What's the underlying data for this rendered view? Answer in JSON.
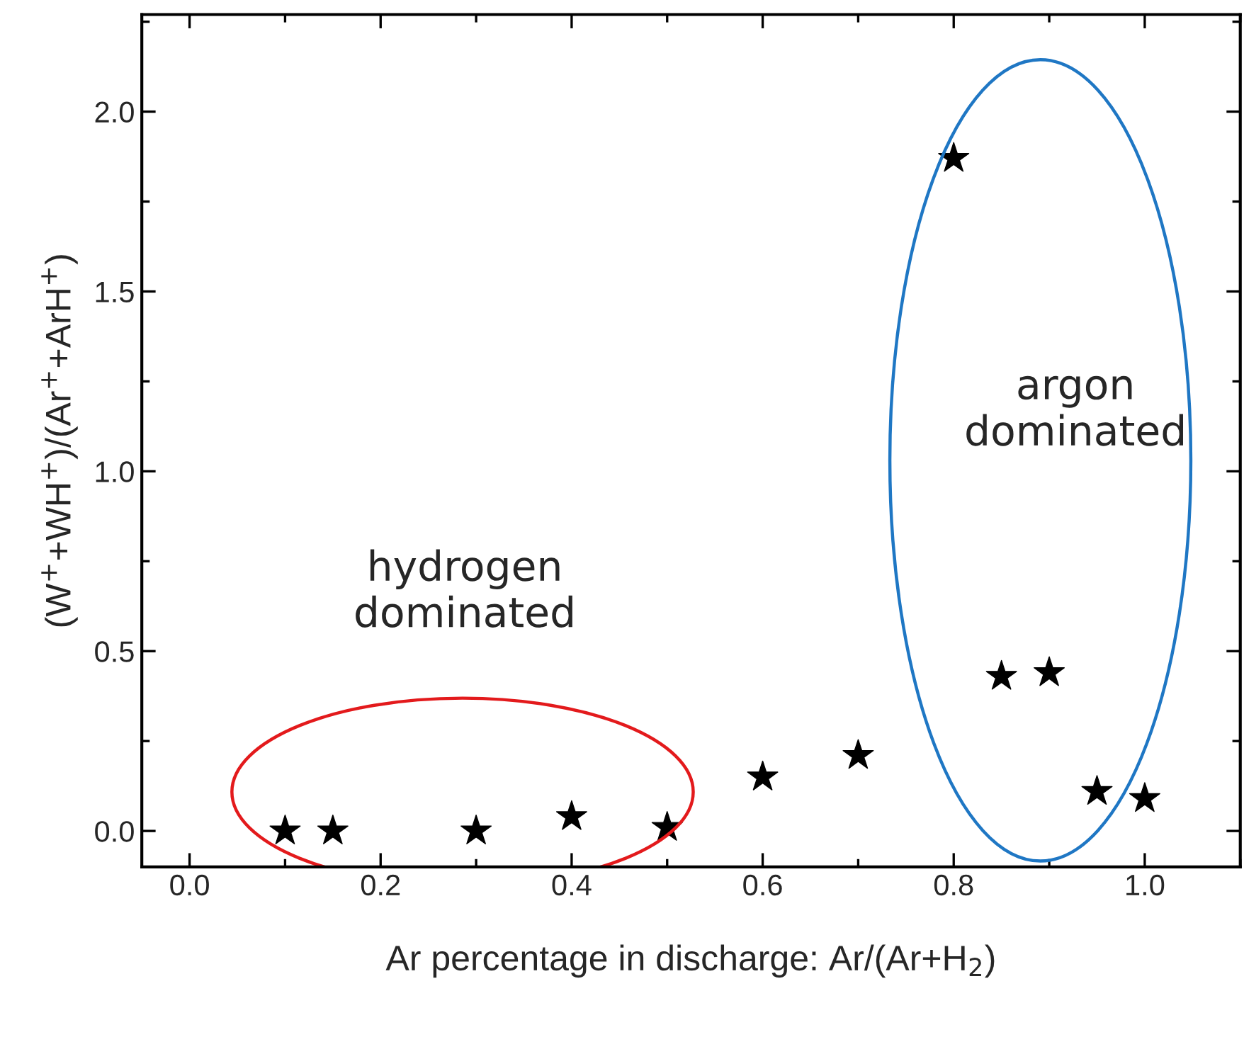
{
  "chart_data": {
    "type": "scatter",
    "xlabel": "Ar percentage in discharge: Ar/(Ar+H$_{2}$)",
    "ylabel": "(W$^{+}$+WH$^{+}$)/(Ar$^{+}$+ArH$^{+}$)",
    "x": [
      0.1,
      0.15,
      0.3,
      0.4,
      0.5,
      0.6,
      0.7,
      0.8,
      0.85,
      0.9,
      0.95,
      1.0
    ],
    "series": [
      {
        "color": "#000000",
        "values": [
          0.0,
          0.0,
          0.0,
          0.04,
          0.01,
          0.15,
          0.21,
          1.87,
          0.43,
          0.44,
          0.11,
          0.09
        ]
      }
    ],
    "marker": "star",
    "xlim": [
      -0.05,
      1.1
    ],
    "ylim": [
      -0.1,
      2.27
    ],
    "xticks": [
      {
        "value": 0.0,
        "label": "0.0"
      },
      0.2,
      0.4,
      0.6,
      0.8,
      {
        "value": 1.0,
        "label": "1.0"
      }
    ],
    "yticks": [
      {
        "value": 0.0,
        "label": "0.0"
      },
      0.5,
      {
        "value": 1.0,
        "label": "1.0"
      },
      1.5,
      {
        "value": 2.0,
        "label": "2.0"
      }
    ],
    "grid": false,
    "annotations": [
      "hydrogen\ndominated",
      "argon\ndominated"
    ]
  }
}
